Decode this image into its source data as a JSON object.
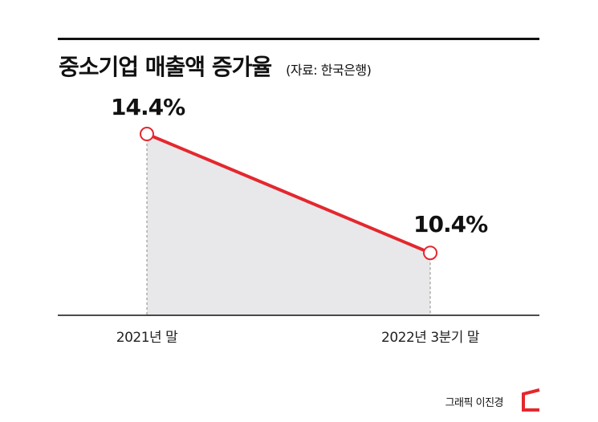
{
  "title": "중소기업 매출액 증가율",
  "source": "(자료: 한국은행)",
  "credit": "그래픽 이진경",
  "colors": {
    "line": "#e3282e",
    "area": "#e8e8ea",
    "axis": "#111111",
    "marker_fill": "#ffffff",
    "logo": "#e3282e"
  },
  "chart_data": {
    "type": "area",
    "categories": [
      "2021년 말",
      "2022년 3분기 말"
    ],
    "values": [
      14.4,
      10.4
    ],
    "data_labels": [
      "14.4%",
      "10.4%"
    ],
    "ylim": [
      8.3,
      15.4
    ],
    "xlabel": "",
    "ylabel": "",
    "grid": false,
    "legend": "none"
  },
  "logo_icon": "red-bracket-logo-icon"
}
